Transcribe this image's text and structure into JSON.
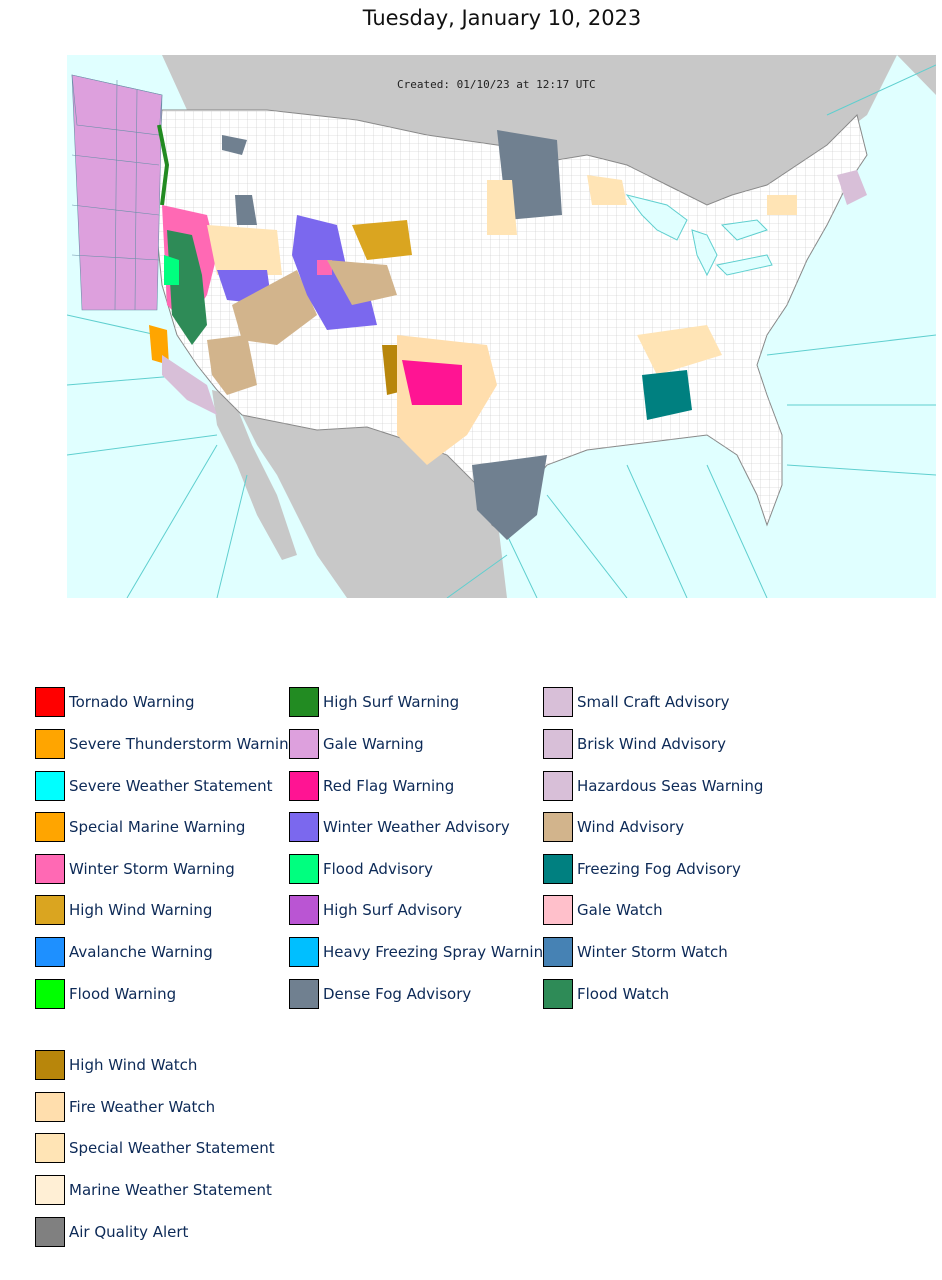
{
  "title": "Tuesday, January 10, 2023",
  "map": {
    "created_label": "Created: 01/10/23 at 12:17 UTC",
    "colors": {
      "ocean": "#e0ffff",
      "land_us": "#ffffff",
      "land_other": "#c8c8c8",
      "county_lines": "#c6c6c6",
      "marine_zone_lines": "#5fcfcf"
    }
  },
  "legend": {
    "col1": [
      {
        "label": "Tornado Warning",
        "color": "#ff0000"
      },
      {
        "label": "Severe Thunderstorm Warning",
        "color": "#ffa500"
      },
      {
        "label": "Severe Weather Statement",
        "color": "#00ffff"
      },
      {
        "label": "Special Marine Warning",
        "color": "#ffa500"
      },
      {
        "label": "Winter Storm Warning",
        "color": "#ff69b4"
      },
      {
        "label": "High Wind Warning",
        "color": "#daa520"
      },
      {
        "label": "Avalanche Warning",
        "color": "#1e90ff"
      },
      {
        "label": "Flood Warning",
        "color": "#00ff00"
      }
    ],
    "col2": [
      {
        "label": "High Surf Warning",
        "color": "#228b22"
      },
      {
        "label": "Gale Warning",
        "color": "#dda0dd"
      },
      {
        "label": "Red Flag Warning",
        "color": "#ff1493"
      },
      {
        "label": "Winter Weather Advisory",
        "color": "#7b68ee"
      },
      {
        "label": "Flood Advisory",
        "color": "#00ff7f"
      },
      {
        "label": "High Surf Advisory",
        "color": "#ba55d3"
      },
      {
        "label": "Heavy Freezing Spray Warning",
        "color": "#00bfff"
      },
      {
        "label": "Dense Fog Advisory",
        "color": "#708090"
      }
    ],
    "col3": [
      {
        "label": "Small Craft Advisory",
        "color": "#d8bfd8"
      },
      {
        "label": "Brisk Wind Advisory",
        "color": "#d8bfd8"
      },
      {
        "label": "Hazardous Seas Warning",
        "color": "#d8bfd8"
      },
      {
        "label": "Wind Advisory",
        "color": "#d2b48c"
      },
      {
        "label": "Freezing Fog Advisory",
        "color": "#008080"
      },
      {
        "label": "Gale Watch",
        "color": "#ffc0cb"
      },
      {
        "label": "Winter Storm Watch",
        "color": "#4682b4"
      },
      {
        "label": "Flood Watch",
        "color": "#2e8b57"
      }
    ],
    "col4": [
      {
        "label": "High Wind Watch",
        "color": "#b8860b"
      },
      {
        "label": "Fire Weather Watch",
        "color": "#ffdead"
      },
      {
        "label": "Special Weather Statement",
        "color": "#ffe4b5"
      },
      {
        "label": "Marine Weather Statement",
        "color": "#ffefd5"
      },
      {
        "label": "Air Quality Alert",
        "color": "#808080"
      }
    ]
  }
}
